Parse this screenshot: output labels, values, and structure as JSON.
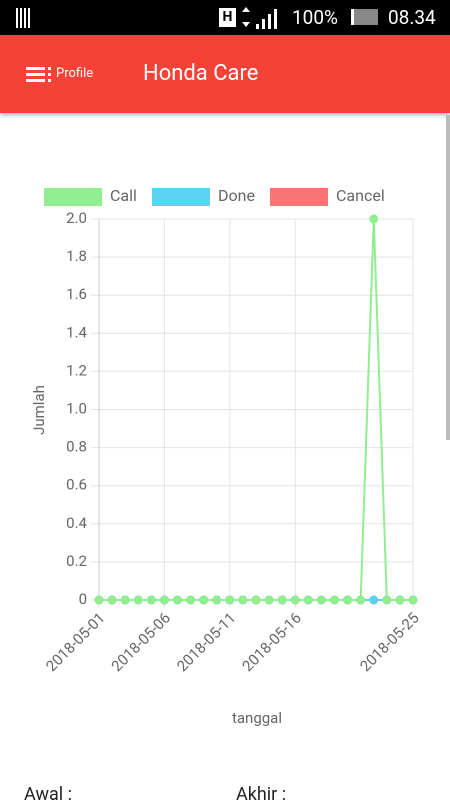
{
  "status_bar": {
    "battery": "100%",
    "time": "08.34"
  },
  "app_bar": {
    "menu": "Profile",
    "title": "Honda Care"
  },
  "chart_data": {
    "type": "line",
    "x_label": "tanggal",
    "y_label": "Jumlah",
    "categories": [
      "2018-05-01",
      null,
      null,
      null,
      null,
      "2018-05-06",
      null,
      null,
      null,
      null,
      "2018-05-11",
      null,
      null,
      null,
      null,
      "2018-05-16",
      null,
      null,
      null,
      null,
      null,
      null,
      null,
      null,
      "2018-05-25"
    ],
    "series": [
      {
        "name": "Call",
        "color": "#90ee90",
        "values": [
          0,
          0,
          0,
          0,
          0,
          0,
          0,
          0,
          0,
          0,
          0,
          0,
          0,
          0,
          0,
          0,
          0,
          0,
          0,
          0,
          0,
          2,
          0,
          0,
          0
        ]
      },
      {
        "name": "Done",
        "color": "#5cd3f3",
        "values": [
          0,
          0,
          0,
          0,
          0,
          0,
          0,
          0,
          0,
          0,
          0,
          0,
          0,
          0,
          0,
          0,
          0,
          0,
          0,
          0,
          0,
          0,
          0,
          0,
          0
        ]
      },
      {
        "name": "Cancel",
        "color": "#f87575",
        "values": [
          0,
          0,
          0,
          0,
          0,
          0,
          0,
          0,
          0,
          0,
          0,
          0,
          0,
          0,
          0,
          0,
          0,
          0,
          0,
          0,
          0,
          0,
          0,
          0,
          0
        ]
      }
    ],
    "ylim": [
      0,
      2
    ],
    "yticks": [
      0,
      0.2,
      0.4,
      0.6,
      0.8,
      {
        "value": 1,
        "label": "1.0"
      },
      1.2,
      1.4,
      1.6,
      1.8,
      {
        "value": 2,
        "label": "2.0"
      }
    ],
    "grid": true,
    "legend": "top"
  },
  "form": {
    "start_label": "Awal :",
    "end_label": "Akhir :"
  }
}
